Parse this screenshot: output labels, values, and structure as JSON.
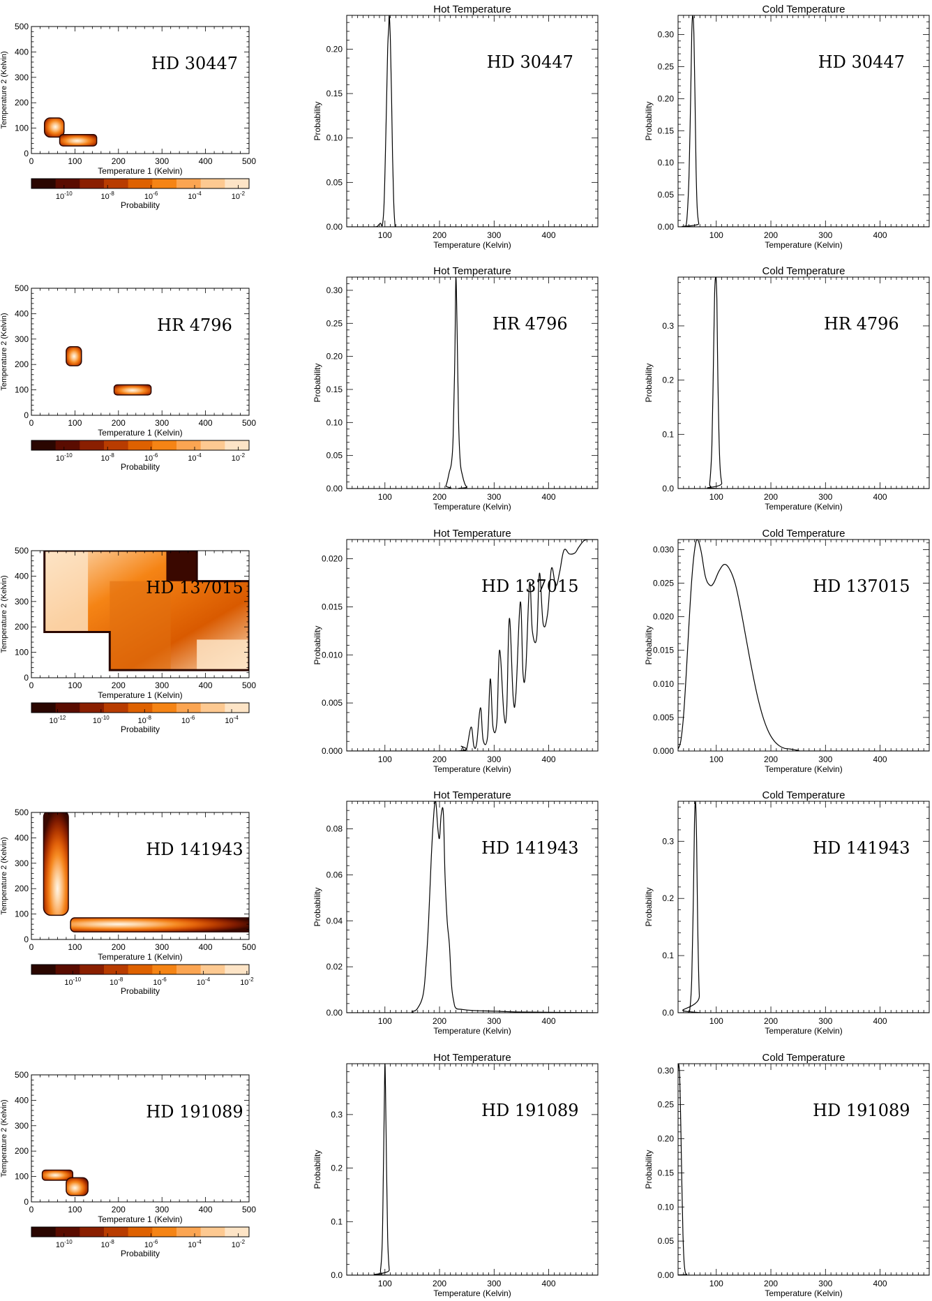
{
  "colors": {
    "line": "#000000",
    "background": "#ffffff"
  },
  "colorbar_stops": [
    "#2a0600",
    "#5a0c00",
    "#8a1f00",
    "#b83c00",
    "#de6100",
    "#f58415",
    "#fba552",
    "#fdc991",
    "#fde4c6"
  ],
  "chart_data": [
    {
      "type": "heatmap",
      "star": "HD 30447",
      "xlabel": "Temperature 1 (Kelvin)",
      "ylabel": "Temperature 2 (Kelvin)",
      "xlim": [
        0,
        500
      ],
      "ylim": [
        0,
        500
      ],
      "xticks": [
        0,
        100,
        200,
        300,
        400,
        500
      ],
      "yticks": [
        0,
        100,
        200,
        300,
        400,
        500
      ],
      "blobs": [
        {
          "x": [
            30,
            75
          ],
          "y": [
            65,
            140
          ],
          "peak": [
            55,
            105
          ]
        },
        {
          "x": [
            65,
            150
          ],
          "y": [
            30,
            75
          ],
          "peak": [
            105,
            50
          ]
        }
      ],
      "colorbar": {
        "label": "Probability",
        "ticks": [
          {
            "pos": 0.15,
            "base": "10",
            "exp": "-10"
          },
          {
            "pos": 0.35,
            "base": "10",
            "exp": "-8"
          },
          {
            "pos": 0.55,
            "base": "10",
            "exp": "-6"
          },
          {
            "pos": 0.75,
            "base": "10",
            "exp": "-4"
          },
          {
            "pos": 0.95,
            "base": "10",
            "exp": "-2"
          }
        ]
      }
    },
    {
      "type": "line",
      "title": "Hot Temperature",
      "star": "HD 30447",
      "xlabel": "Temperature (Kelvin)",
      "ylabel": "Probability",
      "xlim": [
        30,
        490
      ],
      "ylim": [
        0,
        0.238
      ],
      "xticks": [
        100,
        200,
        300,
        400
      ],
      "yticks": [
        0.0,
        0.05,
        0.1,
        0.15,
        0.2
      ],
      "decimals": 2,
      "x": [
        30,
        80,
        88,
        92,
        95,
        98,
        100,
        103,
        105,
        107,
        108,
        110,
        112,
        114,
        116,
        118,
        120,
        130,
        490
      ],
      "y": [
        0,
        0,
        0.002,
        0.004,
        0.001,
        0.02,
        0.06,
        0.14,
        0.2,
        0.225,
        0.238,
        0.21,
        0.15,
        0.08,
        0.03,
        0.005,
        0,
        0,
        0
      ]
    },
    {
      "type": "line",
      "title": "Cold Temperature",
      "star": "HD 30447",
      "xlabel": "Temperature (Kelvin)",
      "ylabel": "Probability",
      "xlim": [
        30,
        490
      ],
      "ylim": [
        0,
        0.33
      ],
      "xticks": [
        100,
        200,
        300,
        400
      ],
      "yticks": [
        0.0,
        0.05,
        0.1,
        0.15,
        0.2,
        0.25,
        0.3
      ],
      "decimals": 2,
      "x": [
        30,
        42,
        46,
        50,
        53,
        55,
        57,
        59,
        61,
        63,
        65,
        68,
        72,
        490
      ],
      "y": [
        0,
        0,
        0.01,
        0.08,
        0.2,
        0.3,
        0.33,
        0.3,
        0.2,
        0.09,
        0.03,
        0.005,
        0,
        0
      ]
    },
    {
      "type": "heatmap",
      "star": "HR 4796",
      "xlabel": "Temperature 1 (Kelvin)",
      "ylabel": "Temperature 2 (Kelvin)",
      "xlim": [
        0,
        500
      ],
      "ylim": [
        0,
        500
      ],
      "xticks": [
        0,
        100,
        200,
        300,
        400,
        500
      ],
      "yticks": [
        0,
        100,
        200,
        300,
        400,
        500
      ],
      "blobs": [
        {
          "x": [
            80,
            115
          ],
          "y": [
            195,
            270
          ],
          "peak": [
            98,
            232
          ]
        },
        {
          "x": [
            190,
            275
          ],
          "y": [
            80,
            120
          ],
          "peak": [
            232,
            98
          ]
        }
      ],
      "colorbar": {
        "label": "Probability",
        "ticks": [
          {
            "pos": 0.15,
            "base": "10",
            "exp": "-10"
          },
          {
            "pos": 0.35,
            "base": "10",
            "exp": "-8"
          },
          {
            "pos": 0.55,
            "base": "10",
            "exp": "-6"
          },
          {
            "pos": 0.75,
            "base": "10",
            "exp": "-4"
          },
          {
            "pos": 0.95,
            "base": "10",
            "exp": "-2"
          }
        ]
      }
    },
    {
      "type": "line",
      "title": "Hot Temperature",
      "star": "HR 4796",
      "xlabel": "Temperature (Kelvin)",
      "ylabel": "Probability",
      "xlim": [
        30,
        490
      ],
      "ylim": [
        0,
        0.32
      ],
      "xticks": [
        100,
        200,
        300,
        400
      ],
      "yticks": [
        0.0,
        0.05,
        0.1,
        0.15,
        0.2,
        0.25,
        0.3
      ],
      "decimals": 2,
      "x": [
        30,
        205,
        212,
        218,
        222,
        225,
        228,
        230,
        232,
        235,
        238,
        242,
        246,
        250,
        255,
        490
      ],
      "y": [
        0,
        0,
        0.005,
        0.025,
        0.04,
        0.08,
        0.2,
        0.32,
        0.25,
        0.1,
        0.04,
        0.02,
        0.008,
        0.002,
        0,
        0
      ]
    },
    {
      "type": "line",
      "title": "Cold Temperature",
      "star": "HR 4796",
      "xlabel": "Temperature (Kelvin)",
      "ylabel": "Probability",
      "xlim": [
        30,
        490
      ],
      "ylim": [
        0,
        0.39
      ],
      "xticks": [
        100,
        200,
        300,
        400
      ],
      "yticks": [
        0.0,
        0.1,
        0.2,
        0.3
      ],
      "decimals": 1,
      "x": [
        30,
        85,
        88,
        92,
        95,
        97,
        99,
        101,
        103,
        106,
        110,
        115,
        490
      ],
      "y": [
        0,
        0,
        0.01,
        0.08,
        0.25,
        0.36,
        0.39,
        0.35,
        0.2,
        0.06,
        0.01,
        0,
        0
      ]
    },
    {
      "type": "heatmap",
      "star": "HD 137015",
      "xlabel": "Temperature 1 (Kelvin)",
      "ylabel": "Temperature 2 (Kelvin)",
      "xlim": [
        0,
        500
      ],
      "ylim": [
        0,
        500
      ],
      "xticks": [
        0,
        100,
        200,
        300,
        400,
        500
      ],
      "yticks": [
        0,
        100,
        200,
        300,
        400,
        500
      ],
      "blobs": [],
      "colorbar": {
        "label": "Probability",
        "ticks": [
          {
            "pos": 0.12,
            "base": "10",
            "exp": "-12"
          },
          {
            "pos": 0.32,
            "base": "10",
            "exp": "-10"
          },
          {
            "pos": 0.52,
            "base": "10",
            "exp": "-8"
          },
          {
            "pos": 0.72,
            "base": "10",
            "exp": "-6"
          },
          {
            "pos": 0.92,
            "base": "10",
            "exp": "-4"
          }
        ]
      }
    },
    {
      "type": "line",
      "title": "Hot Temperature",
      "star": "HD 137015",
      "xlabel": "Temperature (Kelvin)",
      "ylabel": "Probability",
      "xlim": [
        30,
        490
      ],
      "ylim": [
        0,
        0.022
      ],
      "xticks": [
        100,
        200,
        300,
        400
      ],
      "yticks": [
        0.0,
        0.005,
        0.01,
        0.015,
        0.02
      ],
      "decimals": 3,
      "x": [
        30,
        230,
        240,
        245,
        250,
        258,
        263,
        268,
        275,
        280,
        288,
        293,
        298,
        305,
        310,
        318,
        323,
        328,
        335,
        340,
        348,
        353,
        358,
        365,
        370,
        378,
        383,
        390,
        398,
        405,
        413,
        420,
        428,
        438,
        448,
        455,
        465,
        475,
        490
      ],
      "y": [
        0,
        0,
        0.0005,
        0,
        0.0003,
        0.0025,
        0.0005,
        0.0008,
        0.0045,
        0.0011,
        0.0015,
        0.0075,
        0.0025,
        0.003,
        0.0105,
        0.0038,
        0.0042,
        0.0138,
        0.0055,
        0.006,
        0.0155,
        0.008,
        0.0085,
        0.0175,
        0.0125,
        0.0118,
        0.0185,
        0.0132,
        0.0143,
        0.019,
        0.0172,
        0.0186,
        0.0209,
        0.0205,
        0.0206,
        0.0212,
        0.0219,
        0.022,
        0.022
      ]
    },
    {
      "type": "line",
      "title": "Cold Temperature",
      "star": "HD 137015",
      "xlabel": "Temperature (Kelvin)",
      "ylabel": "Probability",
      "xlim": [
        30,
        490
      ],
      "ylim": [
        0,
        0.0315
      ],
      "xticks": [
        100,
        200,
        300,
        400
      ],
      "yticks": [
        0.0,
        0.005,
        0.01,
        0.015,
        0.02,
        0.025,
        0.03
      ],
      "decimals": 3,
      "x": [
        30,
        35,
        40,
        45,
        50,
        55,
        60,
        65,
        72,
        80,
        88,
        95,
        105,
        115,
        125,
        135,
        145,
        155,
        165,
        175,
        185,
        195,
        205,
        215,
        225,
        235,
        250,
        270,
        490
      ],
      "y": [
        0.0003,
        0.0015,
        0.0052,
        0.0115,
        0.019,
        0.0255,
        0.0298,
        0.0315,
        0.0298,
        0.026,
        0.0247,
        0.025,
        0.0268,
        0.0278,
        0.027,
        0.0248,
        0.021,
        0.0166,
        0.0122,
        0.0083,
        0.0052,
        0.003,
        0.0016,
        0.0008,
        0.0004,
        0.0003,
        0.0001,
        0,
        0
      ]
    },
    {
      "type": "heatmap",
      "star": "HD 141943",
      "xlabel": "Temperature 1 (Kelvin)",
      "ylabel": "Temperature 2 (Kelvin)",
      "xlim": [
        0,
        500
      ],
      "ylim": [
        0,
        500
      ],
      "xticks": [
        0,
        100,
        200,
        300,
        400,
        500
      ],
      "yticks": [
        0,
        100,
        200,
        300,
        400,
        500
      ],
      "blobs": [
        {
          "x": [
            28,
            85
          ],
          "y": [
            95,
            510
          ],
          "peak": [
            60,
            200
          ]
        },
        {
          "x": [
            90,
            510
          ],
          "y": [
            30,
            85
          ],
          "peak": [
            200,
            60
          ]
        }
      ],
      "colorbar": {
        "label": "Probability",
        "ticks": [
          {
            "pos": 0.19,
            "base": "10",
            "exp": "-10"
          },
          {
            "pos": 0.39,
            "base": "10",
            "exp": "-8"
          },
          {
            "pos": 0.59,
            "base": "10",
            "exp": "-6"
          },
          {
            "pos": 0.79,
            "base": "10",
            "exp": "-4"
          },
          {
            "pos": 0.99,
            "base": "10",
            "exp": "-2"
          }
        ]
      }
    },
    {
      "type": "line",
      "title": "Hot Temperature",
      "star": "HD 141943",
      "xlabel": "Temperature (Kelvin)",
      "ylabel": "Probability",
      "xlim": [
        30,
        490
      ],
      "ylim": [
        0,
        0.092
      ],
      "xticks": [
        100,
        200,
        300,
        400
      ],
      "yticks": [
        0.0,
        0.02,
        0.04,
        0.06,
        0.08
      ],
      "decimals": 2,
      "x": [
        30,
        140,
        150,
        160,
        170,
        175,
        180,
        185,
        190,
        193,
        197,
        200,
        203,
        207,
        210,
        214,
        218,
        222,
        226,
        230,
        240,
        260,
        300,
        350,
        490
      ],
      "y": [
        0,
        0,
        0.0005,
        0.002,
        0.008,
        0.02,
        0.04,
        0.068,
        0.088,
        0.092,
        0.08,
        0.076,
        0.086,
        0.087,
        0.06,
        0.04,
        0.03,
        0.012,
        0.005,
        0.002,
        0.0015,
        0.001,
        0.0007,
        0.0003,
        0
      ]
    },
    {
      "type": "line",
      "title": "Cold Temperature",
      "star": "HD 141943",
      "xlabel": "Temperature (Kelvin)",
      "ylabel": "Probability",
      "xlim": [
        30,
        490
      ],
      "ylim": [
        0,
        0.37
      ],
      "xticks": [
        100,
        200,
        300,
        400
      ],
      "yticks": [
        0.0,
        0.1,
        0.2,
        0.3
      ],
      "decimals": 1,
      "x": [
        30,
        48,
        52,
        55,
        58,
        60,
        62,
        64,
        66,
        69,
        73,
        490
      ],
      "y": [
        0,
        0,
        0.01,
        0.06,
        0.2,
        0.33,
        0.37,
        0.3,
        0.15,
        0.03,
        0,
        0
      ]
    },
    {
      "type": "heatmap",
      "star": "HD 191089",
      "xlabel": "Temperature 1 (Kelvin)",
      "ylabel": "Temperature 2 (Kelvin)",
      "xlim": [
        0,
        500
      ],
      "ylim": [
        0,
        500
      ],
      "xticks": [
        0,
        100,
        200,
        300,
        400,
        500
      ],
      "yticks": [
        0,
        100,
        200,
        300,
        400,
        500
      ],
      "blobs": [
        {
          "x": [
            25,
            95
          ],
          "y": [
            85,
            125
          ],
          "peak": [
            55,
            105
          ]
        },
        {
          "x": [
            80,
            130
          ],
          "y": [
            25,
            95
          ],
          "peak": [
            100,
            55
          ]
        }
      ],
      "colorbar": {
        "label": "Probability",
        "ticks": [
          {
            "pos": 0.15,
            "base": "10",
            "exp": "-10"
          },
          {
            "pos": 0.35,
            "base": "10",
            "exp": "-8"
          },
          {
            "pos": 0.55,
            "base": "10",
            "exp": "-6"
          },
          {
            "pos": 0.75,
            "base": "10",
            "exp": "-4"
          },
          {
            "pos": 0.95,
            "base": "10",
            "exp": "-2"
          }
        ]
      }
    },
    {
      "type": "line",
      "title": "Hot Temperature",
      "star": "HD 191089",
      "xlabel": "Temperature (Kelvin)",
      "ylabel": "Probability",
      "xlim": [
        30,
        490
      ],
      "ylim": [
        0,
        0.395
      ],
      "xticks": [
        100,
        200,
        300,
        400
      ],
      "yticks": [
        0.0,
        0.1,
        0.2,
        0.3
      ],
      "decimals": 1,
      "x": [
        30,
        88,
        92,
        95,
        97,
        99,
        100,
        101,
        103,
        105,
        108,
        112,
        490
      ],
      "y": [
        0,
        0,
        0.01,
        0.06,
        0.18,
        0.33,
        0.395,
        0.35,
        0.2,
        0.07,
        0.01,
        0,
        0
      ]
    },
    {
      "type": "line",
      "title": "Cold Temperature",
      "star": "HD 191089",
      "xlabel": "Temperature (Kelvin)",
      "ylabel": "Probability",
      "xlim": [
        30,
        490
      ],
      "ylim": [
        0,
        0.31
      ],
      "xticks": [
        100,
        200,
        300,
        400
      ],
      "yticks": [
        0.0,
        0.05,
        0.1,
        0.15,
        0.2,
        0.25,
        0.3
      ],
      "decimals": 2,
      "x": [
        30,
        31,
        33,
        35,
        37,
        39,
        41,
        43,
        46,
        50,
        490
      ],
      "y": [
        0.3,
        0.31,
        0.29,
        0.22,
        0.13,
        0.06,
        0.02,
        0.005,
        0.001,
        0,
        0
      ]
    }
  ]
}
